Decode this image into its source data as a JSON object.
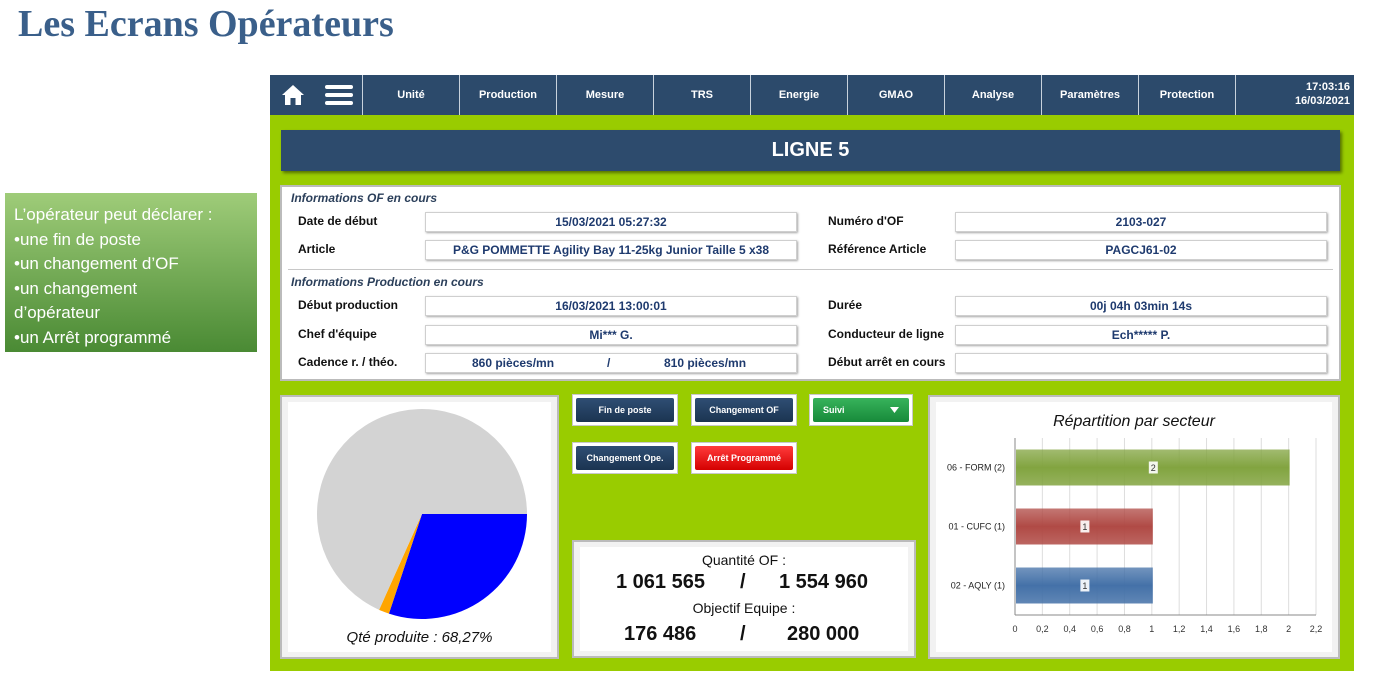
{
  "slide": {
    "title": "Les Ecrans Opérateurs",
    "sidebox": {
      "intro": "L’opérateur peut déclarer :",
      "items": [
        "•une fin de poste",
        "•un changement d’OF",
        "•un changement",
        "d’opérateur",
        "•un Arrêt programmé"
      ]
    }
  },
  "navbar": {
    "items": [
      "Unité",
      "Production",
      "Mesure",
      "TRS",
      "Energie",
      "GMAO",
      "Analyse",
      "Paramètres",
      "Protection"
    ],
    "time": "17:03:16",
    "date": "16/03/2021",
    "icons": [
      "home-icon",
      "menu-icon"
    ],
    "bg_color": "#2c4a6b"
  },
  "line_title": "LIGNE 5",
  "of_info": {
    "section_title": "Informations OF en cours",
    "start_date_label": "Date de début",
    "start_date_value": "15/03/2021 05:27:32",
    "of_number_label": "Numéro d'OF",
    "of_number_value": "2103-027",
    "article_label": "Article",
    "article_value": "P&G POMMETTE Agility Bay 11-25kg Junior Taille 5 x38",
    "ref_label": "Référence Article",
    "ref_value": "PAGCJ61-02"
  },
  "prod_info": {
    "section_title": "Informations Production en cours",
    "start_label": "Début production",
    "start_value": "16/03/2021 13:00:01",
    "duration_label": "Durée",
    "duration_value": "00j 04h 03min 14s",
    "chief_label": "Chef d'équipe",
    "chief_value": "Mi*** G.",
    "driver_label": "Conducteur de ligne",
    "driver_value": "Ech***** P.",
    "rate_label": "Cadence r. / théo.",
    "rate_real": "860 pièces/mn",
    "rate_sep": "/",
    "rate_theo": "810 pièces/mn",
    "stop_label": "Début arrêt en cours",
    "stop_value": ""
  },
  "buttons": {
    "end_shift": "Fin de poste",
    "change_of": "Changement OF",
    "follow": "Suivi",
    "change_ope": "Changement Ope.",
    "planned_stop": "Arrêt Programmé"
  },
  "quantities": {
    "of_label": "Quantité OF :",
    "of_done": "1 061 565",
    "of_sep": "/",
    "of_total": "1 554 960",
    "team_label": "Objectif Equipe :",
    "team_done": "176 486",
    "team_sep": "/",
    "team_total": "280 000"
  },
  "pie": {
    "caption": "Qté produite : 68,27%",
    "slices": [
      {
        "value": 30.1,
        "color": "#0000ff"
      },
      {
        "value": 1.6,
        "color": "#ffa500"
      },
      {
        "value": 68.3,
        "color": "#d3d3d3"
      }
    ]
  },
  "chart_data": {
    "type": "bar",
    "orientation": "horizontal",
    "title": "Répartition par secteur",
    "categories": [
      "06 - FORM (2)",
      "01 - CUFC (1)",
      "02 - AQLY (1)"
    ],
    "values": [
      2,
      1,
      1
    ],
    "data_labels": [
      "2",
      "1",
      "1"
    ],
    "colors": [
      "#82a440",
      "#b04a45",
      "#4471a8"
    ],
    "xlim": [
      0,
      2.2
    ],
    "x_ticks": [
      "0",
      "0,2",
      "0,4",
      "0,6",
      "0,8",
      "1",
      "1,2",
      "1,4",
      "1,6",
      "1,8",
      "2",
      "2,2"
    ],
    "grid": true,
    "legend": "none"
  }
}
